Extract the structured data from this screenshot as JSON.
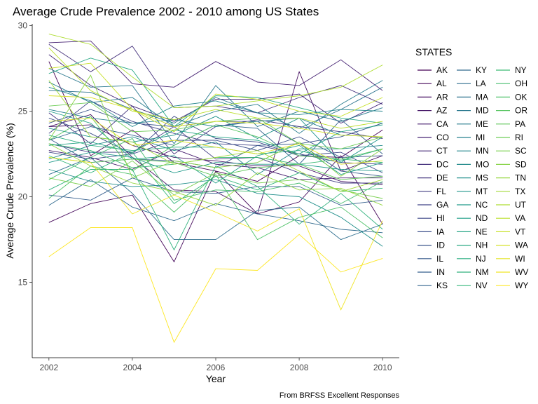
{
  "chart_data": {
    "type": "line",
    "title": "Average Crude Prevalence 2002 - 2010 among US States",
    "xlabel": "Year",
    "ylabel": "Average Crude Prevalence (%)",
    "caption": "From BRFSS Excellent Responses",
    "xlim": [
      2001.6,
      2010.4
    ],
    "ylim": [
      10.6,
      30.1
    ],
    "x_ticks": [
      2002,
      2004,
      2006,
      2008,
      2010
    ],
    "y_ticks": [
      15,
      20,
      25,
      30
    ],
    "grid": false,
    "legend": {
      "title": "STATES",
      "position": "right",
      "columns": 3
    },
    "x": [
      2002,
      2003,
      2004,
      2005,
      2006,
      2007,
      2008,
      2009,
      2010
    ],
    "series": [
      {
        "name": "AK",
        "values": [
          27.9,
          22.4,
          23.9,
          22.0,
          21.5,
          20.9,
          22.4,
          22.3,
          23.9
        ]
      },
      {
        "name": "AL",
        "values": [
          18.5,
          19.6,
          20.1,
          16.2,
          21.5,
          19.0,
          19.7,
          22.4,
          18.4
        ]
      },
      {
        "name": "AR",
        "values": [
          24.1,
          24.8,
          22.3,
          20.4,
          20.3,
          19.0,
          27.3,
          21.5,
          22.4
        ]
      },
      {
        "name": "AZ",
        "values": [
          24.1,
          24.2,
          23.0,
          22.3,
          22.1,
          21.8,
          21.8,
          20.9,
          20.7
        ]
      },
      {
        "name": "CA",
        "values": [
          22.7,
          22.3,
          21.6,
          22.8,
          21.9,
          21.7,
          21.0,
          21.1,
          21.1
        ]
      },
      {
        "name": "CO",
        "values": [
          29.0,
          29.1,
          26.6,
          26.4,
          27.9,
          26.7,
          26.5,
          28.0,
          26.2
        ]
      },
      {
        "name": "CT",
        "values": [
          28.3,
          26.5,
          25.3,
          24.4,
          25.7,
          25.7,
          26.0,
          24.3,
          25.5
        ]
      },
      {
        "name": "DC",
        "values": [
          28.9,
          27.3,
          28.8,
          25.2,
          25.3,
          24.9,
          25.8,
          26.5,
          25.4
        ]
      },
      {
        "name": "DE",
        "values": [
          24.9,
          23.1,
          25.3,
          22.5,
          24.1,
          24.5,
          24.1,
          23.8,
          23.4
        ]
      },
      {
        "name": "FL",
        "values": [
          23.1,
          22.6,
          22.6,
          24.1,
          22.2,
          22.3,
          21.4,
          20.8,
          20.8
        ]
      },
      {
        "name": "GA",
        "values": [
          23.7,
          25.6,
          24.4,
          23.7,
          23.1,
          23.0,
          22.5,
          22.0,
          21.9
        ]
      },
      {
        "name": "HI",
        "values": [
          22.6,
          22.2,
          22.5,
          24.7,
          23.4,
          23.2,
          22.4,
          22.6,
          21.4
        ]
      },
      {
        "name": "IA",
        "values": [
          24.6,
          23.7,
          22.5,
          23.3,
          23.3,
          22.7,
          23.5,
          22.3,
          22.4
        ]
      },
      {
        "name": "ID",
        "values": [
          24.3,
          25.1,
          24.3,
          24.1,
          24.4,
          24.4,
          23.1,
          23.5,
          24.3
        ]
      },
      {
        "name": "IL",
        "values": [
          23.4,
          22.0,
          22.2,
          22.1,
          21.7,
          23.0,
          23.1,
          21.5,
          21.2
        ]
      },
      {
        "name": "IN",
        "values": [
          20.1,
          19.8,
          21.1,
          20.3,
          20.2,
          20.6,
          20.6,
          19.5,
          19.8
        ]
      },
      {
        "name": "KS",
        "values": [
          23.3,
          24.1,
          23.6,
          23.0,
          24.2,
          24.0,
          21.9,
          24.5,
          22.5
        ]
      },
      {
        "name": "KY",
        "values": [
          19.5,
          21.0,
          19.4,
          18.6,
          19.6,
          19.0,
          18.6,
          18.1,
          17.9
        ]
      },
      {
        "name": "LA",
        "values": [
          21.3,
          22.3,
          20.2,
          17.5,
          17.5,
          19.2,
          19.4,
          17.5,
          18.4
        ]
      },
      {
        "name": "MA",
        "values": [
          26.2,
          26.1,
          25.1,
          24.3,
          25.8,
          24.9,
          24.0,
          25.1,
          26.4
        ]
      },
      {
        "name": "MD",
        "values": [
          27.5,
          26.4,
          26.5,
          23.1,
          26.5,
          24.1,
          25.0,
          24.4,
          25.2
        ]
      },
      {
        "name": "ME",
        "values": [
          26.7,
          25.5,
          25.8,
          24.1,
          25.0,
          25.4,
          23.7,
          25.4,
          26.8
        ]
      },
      {
        "name": "MI",
        "values": [
          25.1,
          24.6,
          24.3,
          24.5,
          24.1,
          24.4,
          24.6,
          23.6,
          23.5
        ]
      },
      {
        "name": "MN",
        "values": [
          26.4,
          25.6,
          24.1,
          25.3,
          25.6,
          24.9,
          24.8,
          25.1,
          25.0
        ]
      },
      {
        "name": "MO",
        "values": [
          22.2,
          23.0,
          23.5,
          22.7,
          23.2,
          21.3,
          22.8,
          22.8,
          23.0
        ]
      },
      {
        "name": "MS",
        "values": [
          21.6,
          20.9,
          20.6,
          20.7,
          21.0,
          20.2,
          20.0,
          18.8,
          17.1
        ]
      },
      {
        "name": "MT",
        "values": [
          24.0,
          23.5,
          23.2,
          23.6,
          24.7,
          23.4,
          24.6,
          22.0,
          23.5
        ]
      },
      {
        "name": "NC",
        "values": [
          22.0,
          22.6,
          22.3,
          21.4,
          22.0,
          21.9,
          21.9,
          21.6,
          21.5
        ]
      },
      {
        "name": "ND",
        "values": [
          25.0,
          24.3,
          22.2,
          22.4,
          20.8,
          22.4,
          23.0,
          21.3,
          22.0
        ]
      },
      {
        "name": "NE",
        "values": [
          23.0,
          23.2,
          22.6,
          23.9,
          23.5,
          23.3,
          22.5,
          23.8,
          24.2
        ]
      },
      {
        "name": "NH",
        "values": [
          27.2,
          28.1,
          27.4,
          24.1,
          25.9,
          25.8,
          25.2,
          24.6,
          24.3
        ]
      },
      {
        "name": "NJ",
        "values": [
          23.6,
          23.0,
          22.7,
          22.9,
          22.9,
          22.5,
          22.7,
          22.1,
          22.8
        ]
      },
      {
        "name": "NM",
        "values": [
          20.4,
          21.6,
          21.6,
          16.9,
          21.8,
          20.6,
          18.4,
          20.2,
          18.1
        ]
      },
      {
        "name": "NV",
        "values": [
          22.4,
          21.4,
          22.6,
          19.6,
          21.2,
          20.4,
          21.4,
          20.3,
          20.5
        ]
      },
      {
        "name": "NY",
        "values": [
          23.1,
          22.7,
          21.7,
          21.9,
          22.3,
          22.3,
          21.9,
          22.2,
          22.0
        ]
      },
      {
        "name": "OH",
        "values": [
          21.0,
          22.3,
          23.4,
          19.8,
          20.4,
          20.3,
          20.8,
          19.6,
          20.9
        ]
      },
      {
        "name": "OK",
        "values": [
          19.9,
          21.8,
          21.3,
          19.1,
          21.3,
          17.5,
          18.8,
          19.4,
          17.6
        ]
      },
      {
        "name": "OR",
        "values": [
          23.3,
          24.7,
          21.5,
          23.0,
          24.2,
          23.5,
          22.4,
          22.2,
          22.8
        ]
      },
      {
        "name": "PA",
        "values": [
          22.3,
          22.0,
          22.2,
          22.0,
          21.2,
          21.7,
          21.9,
          21.0,
          21.2
        ]
      },
      {
        "name": "RI",
        "values": [
          25.3,
          25.5,
          23.8,
          23.9,
          24.4,
          24.6,
          23.1,
          22.8,
          23.5
        ]
      },
      {
        "name": "SC",
        "values": [
          21.1,
          20.6,
          22.1,
          20.1,
          21.4,
          20.8,
          21.0,
          20.4,
          19.9
        ]
      },
      {
        "name": "SD",
        "values": [
          23.3,
          27.1,
          21.1,
          22.1,
          21.7,
          22.0,
          23.2,
          21.2,
          22.8
        ]
      },
      {
        "name": "TN",
        "values": [
          23.1,
          21.8,
          20.8,
          20.3,
          19.5,
          21.4,
          20.4,
          20.5,
          19.5
        ]
      },
      {
        "name": "TX",
        "values": [
          26.8,
          23.5,
          23.2,
          21.9,
          22.3,
          22.7,
          21.5,
          20.3,
          21.0
        ]
      },
      {
        "name": "UT",
        "values": [
          29.5,
          28.9,
          27.0,
          25.2,
          25.3,
          25.6,
          25.9,
          26.4,
          27.7
        ]
      },
      {
        "name": "VA",
        "values": [
          28.7,
          26.2,
          25.0,
          24.5,
          25.1,
          24.6,
          24.6,
          24.0,
          24.4
        ]
      },
      {
        "name": "VT",
        "values": [
          27.5,
          27.8,
          25.1,
          23.8,
          26.0,
          25.7,
          25.0,
          24.7,
          25.8
        ]
      },
      {
        "name": "WA",
        "values": [
          25.9,
          25.8,
          25.1,
          24.1,
          24.4,
          24.3,
          24.0,
          23.6,
          23.5
        ]
      },
      {
        "name": "WI",
        "values": [
          24.4,
          24.6,
          23.0,
          23.3,
          22.9,
          22.5,
          23.1,
          21.9,
          22.1
        ]
      },
      {
        "name": "WV",
        "values": [
          22.3,
          22.0,
          19.0,
          20.1,
          19.1,
          18.0,
          19.3,
          13.4,
          18.6
        ]
      },
      {
        "name": "WY",
        "values": [
          16.5,
          18.2,
          18.2,
          11.5,
          15.8,
          15.7,
          17.8,
          15.6,
          16.4
        ]
      }
    ]
  }
}
